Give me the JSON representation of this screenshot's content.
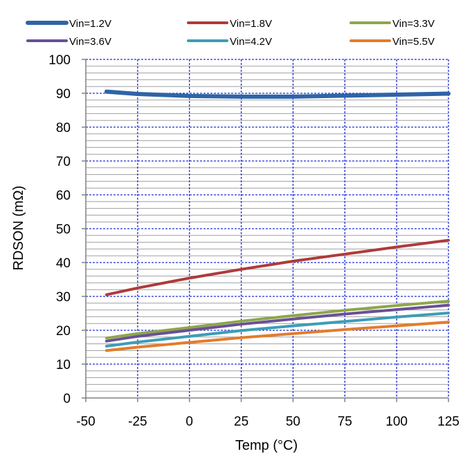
{
  "chart_data": {
    "type": "line",
    "title": "",
    "xlabel": "Temp (°C)",
    "ylabel": "RDSON (mΩ)",
    "xlim": [
      -50,
      125
    ],
    "ylim": [
      0,
      100
    ],
    "xticks": [
      -50,
      -25,
      0,
      25,
      50,
      75,
      100,
      125
    ],
    "yticks": [
      0,
      10,
      20,
      30,
      40,
      50,
      60,
      70,
      80,
      90,
      100
    ],
    "grid": true,
    "legend_position": "top",
    "x": [
      -40,
      -25,
      0,
      25,
      50,
      75,
      100,
      125
    ],
    "series": [
      {
        "name": "Vin=1.2V",
        "color": "#2f64a6",
        "values": [
          90.5,
          89.8,
          89.2,
          89.0,
          89.0,
          89.3,
          89.6,
          89.9
        ]
      },
      {
        "name": "Vin=1.8V",
        "color": "#b03a3a",
        "values": [
          30.5,
          32.5,
          35.4,
          38.0,
          40.4,
          42.5,
          44.6,
          46.6
        ]
      },
      {
        "name": "Vin=3.3V",
        "color": "#8da64a",
        "values": [
          17.7,
          19.0,
          20.8,
          22.7,
          24.3,
          25.9,
          27.3,
          28.6
        ]
      },
      {
        "name": "Vin=3.6V",
        "color": "#6a4f96",
        "values": [
          16.8,
          18.2,
          20.0,
          21.8,
          23.3,
          24.8,
          26.1,
          27.4
        ]
      },
      {
        "name": "Vin=4.2V",
        "color": "#3c9db5",
        "values": [
          15.3,
          16.5,
          18.2,
          19.9,
          21.3,
          22.6,
          23.9,
          25.1
        ]
      },
      {
        "name": "Vin=5.5V",
        "color": "#e37c2b",
        "values": [
          14.0,
          15.0,
          16.4,
          17.8,
          19.0,
          20.2,
          21.3,
          22.4
        ]
      }
    ]
  }
}
